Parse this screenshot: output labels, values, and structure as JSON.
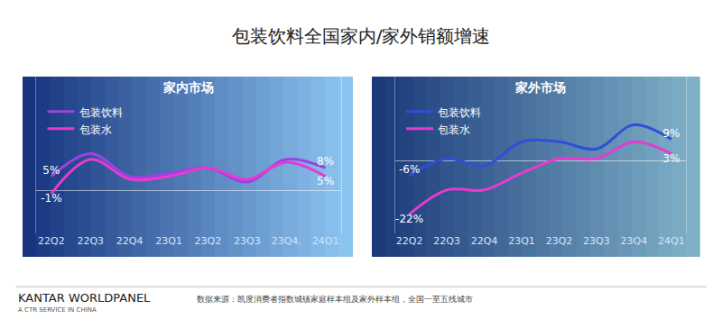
{
  "title": "包装饮料全国家内/家外销额增速",
  "source": "数据来源：凯度消费者指数城镇家庭样本组及家外样本组，全国一至五线城市",
  "logo": "KANTAR WORLDPANEL",
  "logo_sub": "A CTR SERVICE IN CHINA",
  "chart_data": [
    {
      "type": "line",
      "title": "家内市场",
      "categories": [
        "22Q2",
        "22Q3",
        "22Q4",
        "23Q1",
        "23Q2",
        "23Q3",
        "23Q4,",
        "24Q1"
      ],
      "series": [
        {
          "name": "包装饮料",
          "color": "#a040e0",
          "values": [
            5,
            13,
            5,
            6,
            8,
            3,
            11,
            8
          ],
          "value_labels": [
            "5%",
            null,
            null,
            null,
            null,
            null,
            null,
            "8%"
          ]
        },
        {
          "name": "包装水",
          "color": "#e83ad0",
          "values": [
            -1,
            11,
            4,
            5,
            8,
            4,
            10,
            5
          ],
          "value_labels": [
            "-1%",
            null,
            null,
            null,
            null,
            null,
            null,
            "5%"
          ]
        }
      ],
      "ylim": [
        -15,
        40
      ],
      "tick_labels": "x",
      "grid": false,
      "legend": "top-left",
      "line_style": "smooth"
    },
    {
      "type": "line",
      "title": "家外市场",
      "categories": [
        "22Q2",
        "22Q3",
        "22Q4",
        "23Q1",
        "23Q2",
        "23Q3",
        "23Q4",
        "24Q1"
      ],
      "series": [
        {
          "name": "包装饮料",
          "color": "#2f4fd8",
          "values": [
            -6,
            1,
            -2,
            8,
            8,
            5,
            15,
            9
          ],
          "value_labels": [
            "-6%",
            null,
            null,
            null,
            null,
            null,
            null,
            "9%"
          ]
        },
        {
          "name": "包装水",
          "color": "#e83ad0",
          "values": [
            -22,
            -12,
            -12,
            -5,
            1,
            1,
            8,
            3
          ],
          "value_labels": [
            "-22%",
            null,
            null,
            null,
            null,
            null,
            null,
            "3%"
          ]
        }
      ],
      "ylim": [
        -30,
        35
      ],
      "tick_labels": "x",
      "grid": false,
      "legend": "top-left",
      "line_style": "smooth"
    }
  ]
}
